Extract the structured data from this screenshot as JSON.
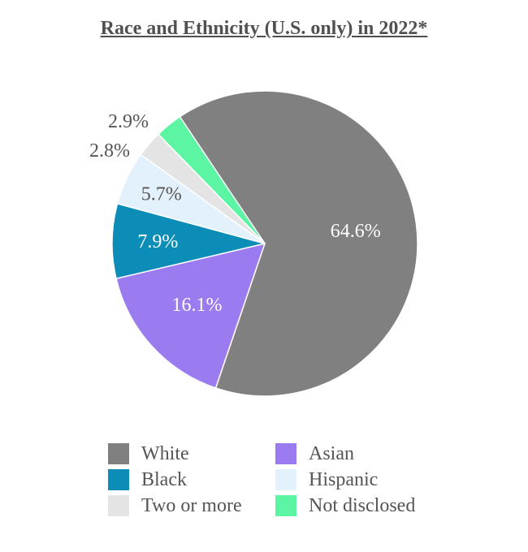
{
  "chart_data": {
    "type": "pie",
    "title": "Race and Ethnicity (U.S. only) in 2022*",
    "start_angle_deg": -33.8,
    "direction": "clockwise",
    "slices": [
      {
        "label": "White",
        "value": 64.6,
        "value_label": "64.6%",
        "color": "#808080",
        "label_color": "#ffffff"
      },
      {
        "label": "Asian",
        "value": 16.1,
        "value_label": "16.1%",
        "color": "#9b7cf0",
        "label_color": "#ffffff"
      },
      {
        "label": "Black",
        "value": 7.9,
        "value_label": "7.9%",
        "color": "#0b8db8",
        "label_color": "#ffffff"
      },
      {
        "label": "Hispanic",
        "value": 5.7,
        "value_label": "5.7%",
        "color": "#e3f1fc",
        "label_color": "#555555"
      },
      {
        "label": "Two or more",
        "value": 2.8,
        "value_label": "2.8%",
        "color": "#e4e4e4",
        "label_color": "#555555"
      },
      {
        "label": "Not disclosed",
        "value": 2.9,
        "value_label": "2.9%",
        "color": "#5cf5a3",
        "label_color": "#555555"
      }
    ],
    "legend_order": [
      "White",
      "Asian",
      "Black",
      "Hispanic",
      "Two or more",
      "Not disclosed"
    ],
    "legend_position": "bottom"
  }
}
